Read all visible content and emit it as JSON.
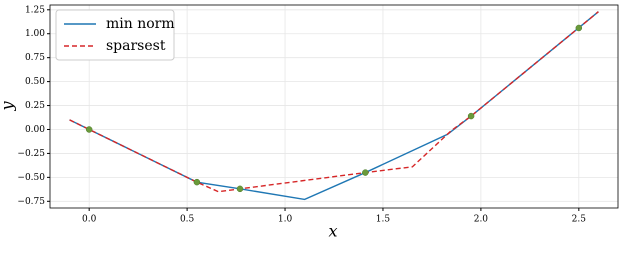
{
  "chart_data": {
    "type": "line",
    "xlabel": "x",
    "ylabel": "y",
    "xlim": [
      -0.2,
      2.7
    ],
    "ylim": [
      -0.82,
      1.3
    ],
    "xticks": [
      {
        "value": 0,
        "label": "0.0"
      },
      {
        "value": 0.5,
        "label": "0.5"
      },
      {
        "value": 1,
        "label": "1.0"
      },
      {
        "value": 1.5,
        "label": "1.5"
      },
      {
        "value": 2,
        "label": "2.0"
      },
      {
        "value": 2.5,
        "label": "2.5"
      }
    ],
    "yticks": [
      {
        "value": -0.75,
        "label": "−0.75"
      },
      {
        "value": -0.5,
        "label": "−0.50"
      },
      {
        "value": -0.25,
        "label": "−0.25"
      },
      {
        "value": 0,
        "label": "0.00"
      },
      {
        "value": 0.25,
        "label": "0.25"
      },
      {
        "value": 0.5,
        "label": "0.50"
      },
      {
        "value": 0.75,
        "label": "0.75"
      },
      {
        "value": 1,
        "label": "1.00"
      },
      {
        "value": 1.25,
        "label": "1.25"
      }
    ],
    "grid": true,
    "legend": "upper left",
    "series": [
      {
        "name": "min norm",
        "color": "#1f77b4",
        "dash": false,
        "x": [
          -0.1,
          0,
          0.55,
          0.77,
          1.1,
          1.41,
          1.83,
          1.95,
          2.6
        ],
        "values": [
          0.1,
          0,
          -0.55,
          -0.62,
          -0.73,
          -0.45,
          -0.05,
          0.14,
          1.23
        ]
      },
      {
        "name": "sparsest",
        "color": "#d62728",
        "dash": true,
        "x": [
          -0.1,
          0,
          0.55,
          0.66,
          0.77,
          1.41,
          1.65,
          1.85,
          1.95,
          2.6
        ],
        "values": [
          0.1,
          0,
          -0.55,
          -0.65,
          -0.62,
          -0.45,
          -0.39,
          -0.01,
          0.14,
          1.23
        ]
      }
    ],
    "points": {
      "color": "#6a9a3a",
      "x": [
        0,
        0.55,
        0.77,
        1.41,
        1.95,
        2.5
      ],
      "values": [
        0,
        -0.55,
        -0.62,
        -0.45,
        0.14,
        1.06
      ]
    }
  }
}
